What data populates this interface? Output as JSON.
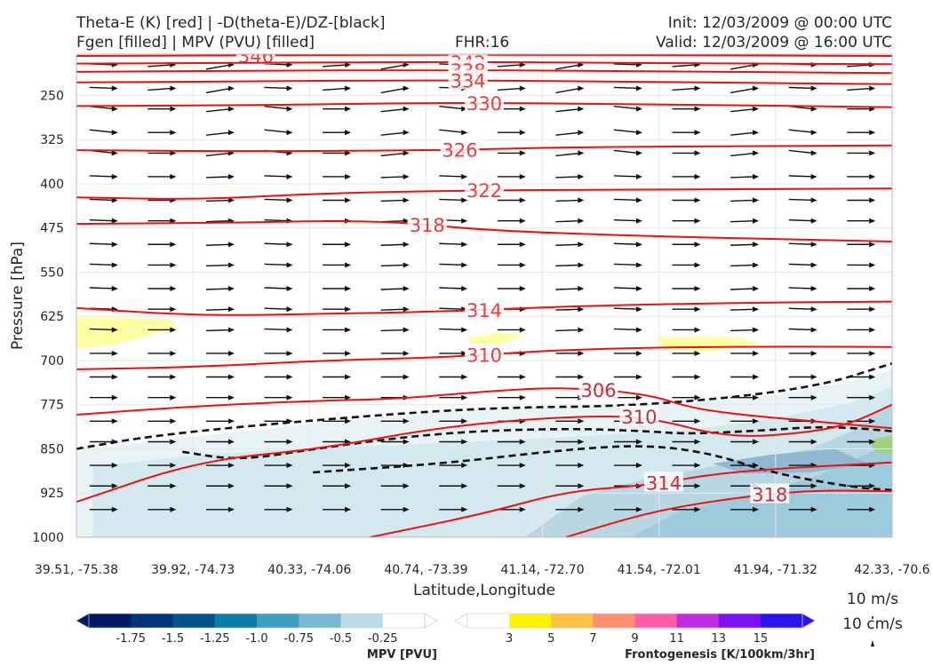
{
  "header": {
    "title_left_1": "Theta-E (K) [red] | -D(theta-E)/DZ-[black]",
    "title_left_2": "Fgen [filled] | MPV (PVU) [filled]",
    "title_center": "FHR:16",
    "title_right_1": "Init: 12/03/2009 @ 00:00 UTC",
    "title_right_2": "Valid: 12/03/2009 @ 16:00 UTC"
  },
  "chart_data": {
    "type": "cross-section",
    "xlabel": "Latitude,Longitude",
    "ylabel": "Pressure [hPa]",
    "x_ticks": [
      "39.51, -75.38",
      "39.92, -74.73",
      "40.33, -74.06",
      "40.74, -73.39",
      "41.14, -72.70",
      "41.54, -72.01",
      "41.94, -71.32",
      "42.33, -70.6"
    ],
    "y_ticks": [
      250,
      325,
      400,
      475,
      550,
      625,
      700,
      775,
      850,
      925,
      1000
    ],
    "ylim": [
      1000,
      180
    ],
    "y_inverted": true,
    "grid": true,
    "theta_e_contours": [
      {
        "level": 346,
        "label": "346",
        "points": [
          [
            0,
            183
          ],
          [
            0.2,
            182
          ],
          [
            0.4,
            181
          ],
          [
            0.6,
            181
          ],
          [
            0.8,
            182
          ],
          [
            1,
            183
          ]
        ]
      },
      {
        "level": 342,
        "label": "342",
        "points": [
          [
            0,
            196
          ],
          [
            0.2,
            195
          ],
          [
            0.45,
            193
          ],
          [
            0.6,
            194
          ],
          [
            0.8,
            196
          ],
          [
            1,
            197
          ]
        ]
      },
      {
        "level": 338,
        "label": "338",
        "points": [
          [
            0,
            210
          ],
          [
            0.2,
            208
          ],
          [
            0.45,
            207
          ],
          [
            0.6,
            208
          ],
          [
            0.8,
            210
          ],
          [
            1,
            212
          ]
        ]
      },
      {
        "level": 334,
        "label": "334",
        "points": [
          [
            0,
            228
          ],
          [
            0.2,
            226
          ],
          [
            0.45,
            224
          ],
          [
            0.7,
            227
          ],
          [
            1,
            231
          ]
        ]
      },
      {
        "level": 330,
        "label": "330",
        "points": [
          [
            0,
            268
          ],
          [
            0.2,
            267
          ],
          [
            0.45,
            262
          ],
          [
            0.7,
            265
          ],
          [
            1,
            270
          ]
        ]
      },
      {
        "level": 326,
        "label": "326",
        "points": [
          [
            0,
            343
          ],
          [
            0.2,
            345
          ],
          [
            0.45,
            343
          ],
          [
            0.6,
            338
          ],
          [
            0.8,
            336
          ],
          [
            1,
            335
          ]
        ]
      },
      {
        "level": 322,
        "label": "322",
        "points": [
          [
            0,
            423
          ],
          [
            0.15,
            427
          ],
          [
            0.3,
            416
          ],
          [
            0.5,
            411
          ],
          [
            0.7,
            410
          ],
          [
            1,
            408
          ]
        ]
      },
      {
        "level": 318,
        "label": "318",
        "points": [
          [
            0,
            468
          ],
          [
            0.2,
            466
          ],
          [
            0.3,
            463
          ],
          [
            0.4,
            465
          ],
          [
            0.5,
            479
          ],
          [
            0.7,
            489
          ],
          [
            0.9,
            495
          ],
          [
            1,
            498
          ]
        ]
      },
      {
        "level": 314,
        "label": "314",
        "points": [
          [
            0,
            611
          ],
          [
            0.15,
            624
          ],
          [
            0.3,
            621
          ],
          [
            0.45,
            617
          ],
          [
            0.6,
            608
          ],
          [
            0.8,
            602
          ],
          [
            1,
            600
          ]
        ]
      },
      {
        "level": 310,
        "label": "310",
        "points": [
          [
            0,
            715
          ],
          [
            0.15,
            711
          ],
          [
            0.3,
            700
          ],
          [
            0.45,
            695
          ],
          [
            0.6,
            681
          ],
          [
            0.8,
            676
          ],
          [
            1,
            677
          ]
        ]
      },
      {
        "level": 306,
        "label": "306",
        "points": [
          [
            0,
            792
          ],
          [
            0.15,
            777
          ],
          [
            0.3,
            768
          ],
          [
            0.4,
            765
          ],
          [
            0.5,
            752
          ],
          [
            0.6,
            745
          ],
          [
            0.7,
            757
          ],
          [
            0.75,
            779
          ],
          [
            0.8,
            790
          ],
          [
            0.9,
            803
          ],
          [
            1,
            815
          ]
        ]
      },
      {
        "level": 310,
        "label": "310",
        "points": [
          [
            0,
            940
          ],
          [
            0.15,
            870
          ],
          [
            0.3,
            850
          ],
          [
            0.45,
            812
          ],
          [
            0.6,
            795
          ],
          [
            0.7,
            795
          ],
          [
            0.8,
            832
          ],
          [
            0.9,
            822
          ],
          [
            0.95,
            807
          ],
          [
            1,
            775
          ]
        ]
      },
      {
        "level": 314,
        "label": "314",
        "points": [
          [
            0.36,
            1000
          ],
          [
            0.5,
            960
          ],
          [
            0.6,
            922
          ],
          [
            0.7,
            912
          ],
          [
            0.8,
            888
          ],
          [
            1,
            873
          ]
        ]
      },
      {
        "level": 318,
        "label": "318",
        "points": [
          [
            0.6,
            1000
          ],
          [
            0.7,
            958
          ],
          [
            0.8,
            934
          ],
          [
            0.9,
            920
          ],
          [
            1,
            922
          ]
        ]
      }
    ],
    "dthetae_dz_contours": [
      {
        "level": 0,
        "points": [
          [
            0,
            850
          ],
          [
            0.1,
            826
          ],
          [
            0.3,
            800
          ],
          [
            0.5,
            780
          ],
          [
            0.7,
            777
          ],
          [
            0.9,
            748
          ],
          [
            1,
            705
          ]
        ]
      },
      {
        "level": 0,
        "points": [
          [
            0.13,
            855
          ],
          [
            0.2,
            870
          ],
          [
            0.3,
            848
          ],
          [
            0.45,
            822
          ],
          [
            0.6,
            815
          ],
          [
            0.7,
            820
          ],
          [
            0.75,
            825
          ],
          [
            0.85,
            818
          ],
          [
            0.9,
            813
          ],
          [
            0.95,
            814
          ],
          [
            1,
            820
          ]
        ]
      },
      {
        "level": 0,
        "points": [
          [
            0.29,
            890
          ],
          [
            0.45,
            875
          ],
          [
            0.6,
            851
          ],
          [
            0.7,
            843
          ],
          [
            0.78,
            858
          ],
          [
            0.85,
            890
          ],
          [
            0.95,
            915
          ],
          [
            1,
            920
          ]
        ]
      }
    ],
    "mpv_fill_regions": [
      {
        "pvu_min": -0.25,
        "pvu_max": 0,
        "color": "#e8f3f6",
        "note": "broad low-level fill"
      }
    ],
    "fgen_fill_regions": [
      {
        "min": 3,
        "max": 5,
        "color": "#ffff8c"
      }
    ],
    "mpv_colorbar": {
      "label": "MPV [PVU]",
      "ticks": [
        "-1.75",
        "-1.5",
        "-1.25",
        "-1.0",
        "-0.75",
        "-0.5",
        "-0.25"
      ],
      "colors": [
        "#001a66",
        "#00347a",
        "#00538c",
        "#0b7ea8",
        "#3b9ec2",
        "#7ab9d4",
        "#b9dbe6",
        "#ffffff"
      ]
    },
    "fgen_colorbar": {
      "label": "Frontogenesis [K/100km/3hr]",
      "ticks": [
        "3",
        "5",
        "7",
        "9",
        "11",
        "13",
        "15"
      ],
      "colors": [
        "#ffffff",
        "#fff200",
        "#ffc247",
        "#ff8f70",
        "#ff5ca6",
        "#c22ce0",
        "#7a12f5",
        "#2b12f0"
      ]
    },
    "wind_key": {
      "label_1": "10 m/s",
      "label_2": "10 cm/s"
    }
  }
}
